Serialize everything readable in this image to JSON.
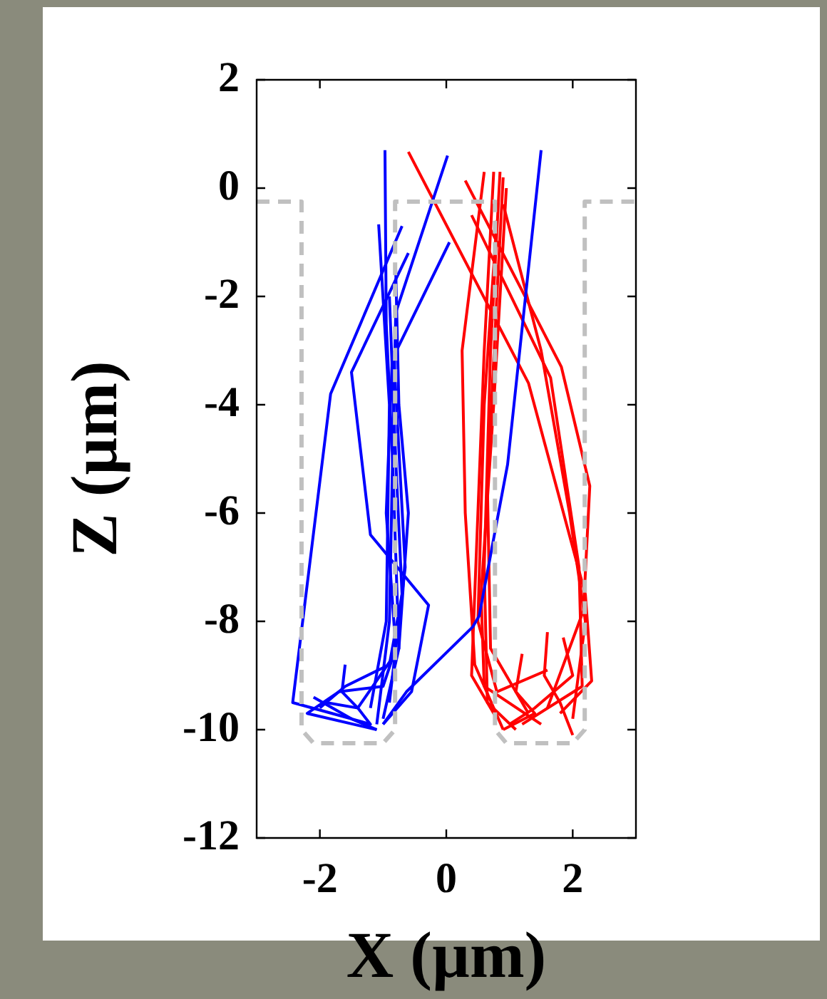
{
  "chart_data": {
    "type": "line",
    "xlabel": "X (µm)",
    "ylabel": "Z (µm)",
    "xlim": [
      -3,
      3
    ],
    "xticks": [
      -2,
      0,
      2
    ],
    "ylim": [
      -12,
      2
    ],
    "yticks": [
      -12,
      -10,
      -8,
      -6,
      -4,
      -2,
      0,
      2
    ],
    "grid": false,
    "legend": false,
    "marker": "none",
    "series": [
      {
        "color": "#c0c0c0",
        "line_style": "dashed",
        "x": [
          -3,
          -2.29,
          -2.29,
          -2.1,
          -1.0,
          -0.81,
          -0.81,
          0.77,
          0.77,
          0.95,
          2.0,
          2.19,
          2.19,
          3
        ],
        "values": [
          -0.25,
          -0.25,
          -10,
          -10.25,
          -10.25,
          -10,
          -0.25,
          -0.25,
          -10,
          -10.25,
          -10.25,
          -10,
          -0.25,
          -0.25
        ]
      },
      {
        "color": "#0000ff",
        "x": [
          -0.97,
          -0.95,
          -0.85,
          -0.9,
          -1.1
        ],
        "values": [
          0.7,
          -2.5,
          -5,
          -8,
          -9.9
        ]
      },
      {
        "color": "#0000ff",
        "x": [
          -0.7,
          -1.83,
          -2.43,
          -1.5,
          -1.1
        ],
        "values": [
          -0.7,
          -3.8,
          -9.5,
          -9.8,
          -10
        ]
      },
      {
        "color": "#0000ff",
        "x": [
          0.02,
          -0.8,
          -0.85,
          -0.75,
          -1.0
        ],
        "values": [
          0.6,
          -2.3,
          -5,
          -8.5,
          -9.8
        ]
      },
      {
        "color": "#0000ff",
        "x": [
          0.05,
          -0.83,
          -0.65,
          -0.9
        ],
        "values": [
          -1.0,
          -3.1,
          -7,
          -9.5
        ]
      },
      {
        "color": "#0000ff",
        "x": [
          -0.6,
          -1.5,
          -1.2,
          -0.28,
          -0.55,
          -1.0
        ],
        "values": [
          -1.2,
          -3.4,
          -6.4,
          -7.7,
          -9.3,
          -9.9
        ]
      },
      {
        "color": "#0000ff",
        "x": [
          -1.07,
          -0.9,
          -0.95,
          -1.2
        ],
        "values": [
          -0.67,
          -4,
          -8,
          -9.6
        ]
      },
      {
        "color": "#0000ff",
        "x": [
          1.5,
          0.97,
          0.52,
          0.42,
          -0.63,
          -1.0
        ],
        "values": [
          0.7,
          -5.1,
          -7.9,
          -8.1,
          -9.3,
          -9.9
        ]
      },
      {
        "color": "#0000ff",
        "x": [
          -0.8,
          -0.75,
          -0.6,
          -0.75,
          -1.4,
          -1.9
        ],
        "values": [
          -1.5,
          -4,
          -6,
          -8.5,
          -9.6,
          -9.5
        ]
      },
      {
        "color": "#0000ff",
        "x": [
          -0.9,
          -0.8,
          -0.7,
          -0.9,
          -1.6,
          -2.0
        ],
        "values": [
          -2,
          -5,
          -7.5,
          -8.8,
          -9.2,
          -9.6
        ]
      },
      {
        "color": "#0000ff",
        "x": [
          -1.6,
          -1.65,
          -1.4,
          -1.2,
          -1.5,
          -2.1
        ],
        "values": [
          -8.8,
          -9.3,
          -9.6,
          -9.9,
          -9.8,
          -9.4
        ]
      },
      {
        "color": "#0000ff",
        "x": [
          -0.85,
          -0.95,
          -0.8,
          -1.0,
          -1.7,
          -2.2,
          -1.1
        ],
        "values": [
          -3,
          -6,
          -8.5,
          -9.2,
          -9.3,
          -9.7,
          -10
        ]
      },
      {
        "color": "#ff0000",
        "x": [
          -0.6,
          1.3,
          2.2,
          2.3,
          1.8
        ],
        "values": [
          0.67,
          -3.6,
          -7.5,
          -9.1,
          -9.7
        ]
      },
      {
        "color": "#ff0000",
        "x": [
          0.3,
          1.82,
          2.27,
          2.17,
          1.6
        ],
        "values": [
          0.14,
          -3.3,
          -5.5,
          -7.8,
          -9.6
        ]
      },
      {
        "color": "#ff0000",
        "x": [
          0.4,
          1.65,
          2.1,
          2.15,
          1.2
        ],
        "values": [
          -0.5,
          -3.5,
          -7,
          -9.2,
          -9.9
        ]
      },
      {
        "color": "#ff0000",
        "x": [
          0.9,
          1.5,
          1.95,
          2.2,
          2.0
        ],
        "values": [
          -0.3,
          -3,
          -6,
          -8,
          -9.8
        ]
      },
      {
        "color": "#ff0000",
        "x": [
          0.6,
          0.25,
          0.3,
          0.45,
          0.9
        ],
        "values": [
          0.3,
          -3,
          -6,
          -8.8,
          -10
        ]
      },
      {
        "color": "#ff0000",
        "x": [
          0.75,
          0.6,
          0.5,
          0.4,
          0.8
        ],
        "values": [
          0.3,
          -3,
          -6,
          -9,
          -9.8
        ]
      },
      {
        "color": "#ff0000",
        "x": [
          0.85,
          0.7,
          0.6,
          0.65,
          1.1
        ],
        "values": [
          0.3,
          -3,
          -7,
          -9.5,
          -10
        ]
      },
      {
        "color": "#ff0000",
        "x": [
          0.9,
          0.8,
          0.65,
          0.7,
          1.3
        ],
        "values": [
          0.2,
          -2,
          -5.5,
          -8.5,
          -9.7
        ]
      },
      {
        "color": "#ff0000",
        "x": [
          0.95,
          0.75,
          0.55,
          0.6,
          1.5
        ],
        "values": [
          0,
          -4,
          -7.5,
          -9.2,
          -9.9
        ]
      },
      {
        "color": "#ff0000",
        "x": [
          0.8,
          0.6,
          0.5,
          0.8,
          1.6
        ],
        "values": [
          -0.6,
          -4,
          -8,
          -9.3,
          -8.9
        ]
      },
      {
        "color": "#ff0000",
        "x": [
          1.6,
          1.55,
          1.8,
          2.0
        ],
        "values": [
          -8.2,
          -9,
          -9.5,
          -10.1
        ]
      },
      {
        "color": "#ff0000",
        "x": [
          1.2,
          1.1,
          1.4,
          0.9
        ],
        "values": [
          -8.6,
          -9.3,
          -9.7,
          -10
        ]
      },
      {
        "color": "#ff0000",
        "x": [
          1.85,
          2.0,
          1.4,
          1.0
        ],
        "values": [
          -8.3,
          -9,
          -9.6,
          -9.9
        ]
      }
    ]
  }
}
